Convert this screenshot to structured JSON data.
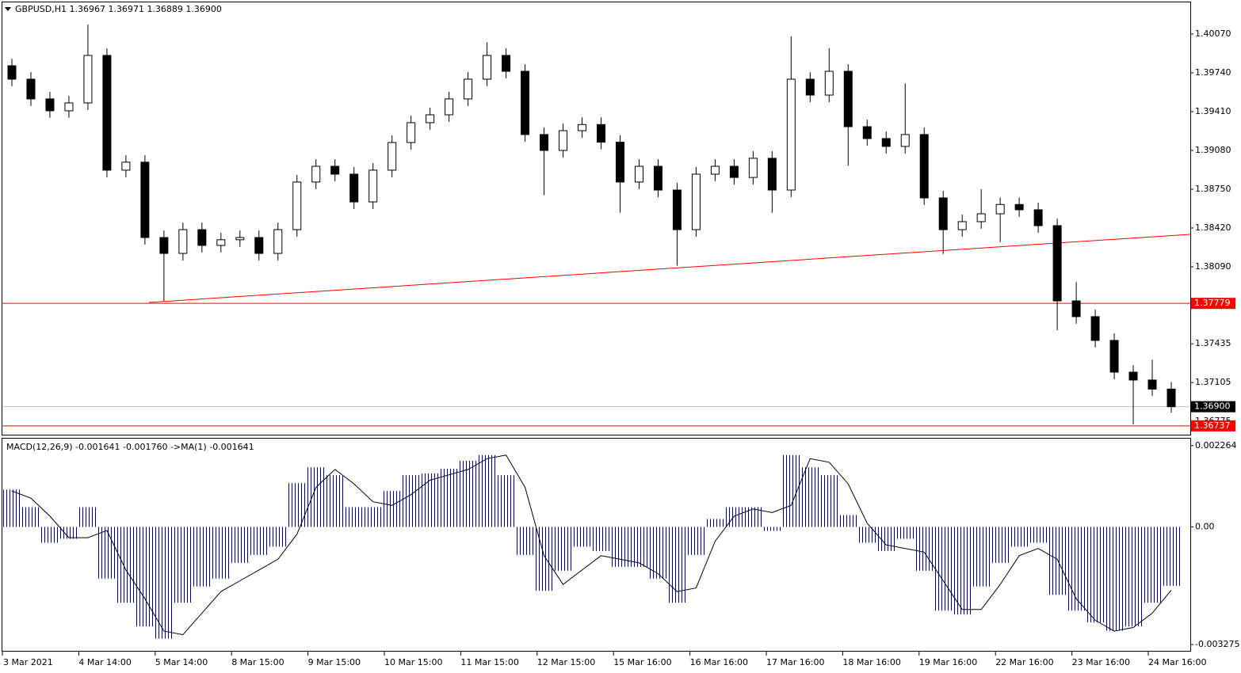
{
  "chart_data": [
    {
      "type": "candlestick",
      "title": "GBPUSD,H1  1.36967 1.36971 1.36889 1.36900",
      "x_labels": [
        "3 Mar 2021",
        "4 Mar 14:00",
        "5 Mar 14:00",
        "8 Mar 15:00",
        "9 Mar 15:00",
        "10 Mar 15:00",
        "11 Mar 15:00",
        "12 Mar 15:00",
        "15 Mar 16:00",
        "16 Mar 16:00",
        "17 Mar 16:00",
        "18 Mar 16:00",
        "19 Mar 16:00",
        "22 Mar 16:00",
        "23 Mar 16:00",
        "24 Mar 16:00"
      ],
      "open": [
        1.398,
        1.39686,
        1.39518,
        1.39417,
        1.39484,
        1.39888,
        1.38912,
        1.3898,
        1.38339,
        1.38204,
        1.38406,
        1.38272,
        1.3832,
        1.38339,
        1.38204,
        1.38406,
        1.38811,
        1.38945,
        1.38878,
        1.38642,
        1.38912,
        1.39147,
        1.39316,
        1.39383,
        1.39518,
        1.39686,
        1.39888,
        1.39753,
        1.39215,
        1.3908,
        1.39248,
        1.393,
        1.3915,
        1.38811,
        1.38945,
        1.38743,
        1.38406,
        1.38878,
        1.38945,
        1.3885,
        1.39013,
        1.38743,
        1.39686,
        1.39551,
        1.39753,
        1.39282,
        1.39181,
        1.39114,
        1.39215,
        1.38676,
        1.38406,
        1.38474,
        1.38541,
        1.3862,
        1.38575,
        1.3844,
        1.378,
        1.37666,
        1.37464,
        1.37194,
        1.37127,
        1.3705
      ],
      "high": [
        1.3986,
        1.39746,
        1.39578,
        1.39544,
        1.4015,
        1.39948,
        1.3904,
        1.3904,
        1.38399,
        1.38466,
        1.38466,
        1.3838,
        1.38399,
        1.38399,
        1.38466,
        1.38871,
        1.39005,
        1.39005,
        1.38938,
        1.38972,
        1.39207,
        1.39376,
        1.39443,
        1.39578,
        1.39746,
        1.4,
        1.39948,
        1.39813,
        1.39275,
        1.39308,
        1.3936,
        1.3936,
        1.3921,
        1.39005,
        1.39005,
        1.38803,
        1.38938,
        1.39005,
        1.39005,
        1.39073,
        1.39073,
        1.4005,
        1.39746,
        1.3995,
        1.39813,
        1.39342,
        1.39241,
        1.3965,
        1.39275,
        1.38736,
        1.38534,
        1.3875,
        1.3868,
        1.3868,
        1.38635,
        1.385,
        1.3796,
        1.37726,
        1.37524,
        1.37254,
        1.373,
        1.3711
      ],
      "low": [
        1.39626,
        1.39458,
        1.39357,
        1.39357,
        1.39424,
        1.38852,
        1.38852,
        1.38279,
        1.378,
        1.38144,
        1.38212,
        1.38212,
        1.3826,
        1.38144,
        1.38144,
        1.38346,
        1.38751,
        1.38818,
        1.38582,
        1.38582,
        1.38852,
        1.39087,
        1.39256,
        1.39323,
        1.39458,
        1.39626,
        1.39693,
        1.39155,
        1.387,
        1.3902,
        1.39188,
        1.3909,
        1.3855,
        1.38751,
        1.38683,
        1.381,
        1.38346,
        1.38818,
        1.3879,
        1.3879,
        1.3855,
        1.38683,
        1.39491,
        1.39491,
        1.3895,
        1.39121,
        1.39054,
        1.39054,
        1.38616,
        1.382,
        1.38346,
        1.38414,
        1.383,
        1.38515,
        1.3838,
        1.3755,
        1.37606,
        1.37404,
        1.37134,
        1.3675,
        1.3699,
        1.3685
      ],
      "close": [
        1.39686,
        1.39518,
        1.39417,
        1.39484,
        1.39888,
        1.38912,
        1.3898,
        1.38339,
        1.38204,
        1.38406,
        1.38272,
        1.3832,
        1.38339,
        1.38204,
        1.38406,
        1.38811,
        1.38945,
        1.38878,
        1.38642,
        1.38912,
        1.39147,
        1.39316,
        1.39383,
        1.39518,
        1.39686,
        1.39888,
        1.39753,
        1.39215,
        1.3908,
        1.39248,
        1.393,
        1.3915,
        1.38811,
        1.38945,
        1.38743,
        1.38406,
        1.38878,
        1.38945,
        1.3885,
        1.39013,
        1.38743,
        1.39686,
        1.39551,
        1.39753,
        1.39282,
        1.39181,
        1.39114,
        1.39215,
        1.38676,
        1.38406,
        1.38474,
        1.38541,
        1.3862,
        1.38575,
        1.3844,
        1.378,
        1.37666,
        1.37464,
        1.37194,
        1.37127,
        1.3705,
        1.369
      ],
      "ylim": [
        1.36662,
        1.40346
      ],
      "yticks": [
        {
          "value": 1.4007,
          "label": "1.40070"
        },
        {
          "value": 1.3974,
          "label": "1.39740"
        },
        {
          "value": 1.3941,
          "label": "1.39410"
        },
        {
          "value": 1.3908,
          "label": "1.39080"
        },
        {
          "value": 1.3875,
          "label": "1.38750"
        },
        {
          "value": 1.3842,
          "label": "1.38420"
        },
        {
          "value": 1.3809,
          "label": "1.38090"
        },
        1.37435,
        1.37105,
        1.36775
      ],
      "hlines": [
        {
          "value": 1.37779,
          "color": "#ff0000"
        },
        {
          "value": 1.36737,
          "color": "#ff0000"
        }
      ],
      "current": {
        "value": 1.369,
        "label": "1.36900"
      }
    },
    {
      "type": "macd",
      "title": "MACD(12,26,9) -0.001641 -0.001760  ->MA(1) -0.001641",
      "series": [
        {
          "style": "histogram",
          "color": "#000080",
          "values": [
            0.00104,
            0.00055,
            -0.00044,
            -0.00033,
            0.00055,
            -0.00144,
            -0.00211,
            -0.00277,
            -0.00311,
            -0.00211,
            -0.00166,
            -0.00144,
            -0.001,
            -0.00078,
            -0.00055,
            0.00122,
            0.00166,
            0.00144,
            0.00055,
            0.00055,
            0.001,
            0.00144,
            0.00149,
            0.00162,
            0.00184,
            0.002,
            0.00144,
            -0.00078,
            -0.00178,
            -0.00122,
            -0.00055,
            -0.00067,
            -0.00111,
            -0.00111,
            -0.00144,
            -0.00211,
            -0.00078,
            0.00022,
            0.00055,
            0.00055,
            -0.00011,
            0.002,
            0.00166,
            0.00144,
            0.00033,
            -0.00044,
            -0.00067,
            -0.00033,
            -0.00122,
            -0.00233,
            -0.00244,
            -0.00166,
            -0.001,
            -0.00055,
            -0.00044,
            -0.00189,
            -0.00233,
            -0.00266,
            -0.00289,
            -0.00277,
            -0.00211,
            -0.00164
          ]
        },
        {
          "style": "line",
          "color": "#000000",
          "values": [
            0.001,
            0.0008,
            0.0003,
            -0.0003,
            -0.0003,
            -0.0001,
            -0.0012,
            -0.002,
            -0.0029,
            -0.003,
            -0.0024,
            -0.0018,
            -0.0015,
            -0.0012,
            -0.0009,
            -0.0002,
            0.0011,
            0.0016,
            0.0012,
            0.0007,
            0.0006,
            0.0009,
            0.0013,
            0.00145,
            0.0016,
            0.0019,
            0.002,
            0.0011,
            -0.0008,
            -0.0016,
            -0.0012,
            -0.0008,
            -0.0009,
            -0.001,
            -0.0013,
            -0.0018,
            -0.0017,
            -0.0004,
            0.0003,
            0.0005,
            0.0004,
            0.0006,
            0.0019,
            0.0018,
            0.0012,
            0.0001,
            -0.0005,
            -0.0006,
            -0.0007,
            -0.0015,
            -0.0023,
            -0.0023,
            -0.0016,
            -0.0008,
            -0.0006,
            -0.0009,
            -0.002,
            -0.0026,
            -0.0029,
            -0.0028,
            -0.0024,
            -0.00176
          ]
        }
      ],
      "ylim": [
        -0.00345,
        0.00248
      ],
      "yticks": [
        0.002264,
        {
          "value": 0,
          "label": "0.00"
        },
        -0.003275
      ]
    }
  ]
}
